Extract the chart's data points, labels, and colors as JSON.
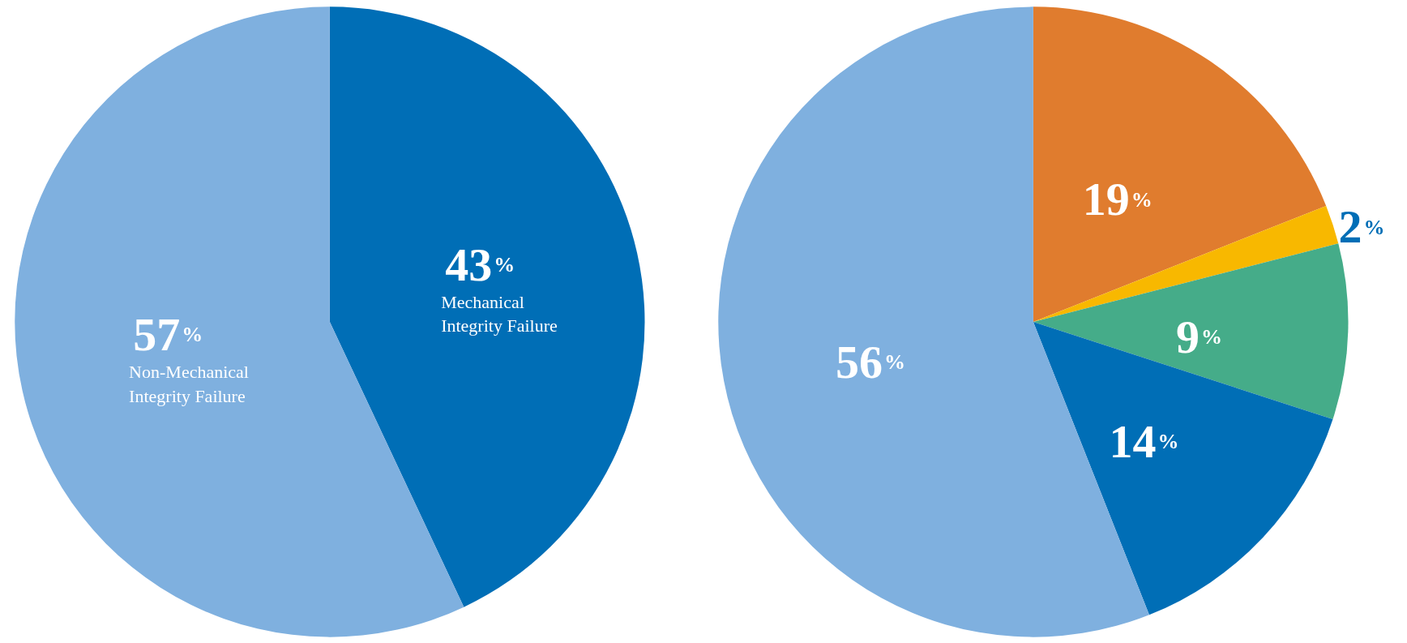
{
  "chart_data": [
    {
      "type": "pie",
      "categories": [
        "Mechanical Integrity Failure",
        "Non-Mechanical Integrity Failure"
      ],
      "values": [
        43,
        57
      ],
      "colors": [
        "#006eb6",
        "#7fb0df"
      ],
      "value_labels": [
        "43%",
        "57%"
      ]
    },
    {
      "type": "pie",
      "categories": [
        null,
        null,
        null,
        null,
        null
      ],
      "values": [
        19,
        2,
        9,
        14,
        56
      ],
      "colors": [
        "#e07c2e",
        "#f8b800",
        "#45ac89",
        "#006eb6",
        "#7fb0df"
      ],
      "value_labels": [
        "19%",
        "2%",
        "9%",
        "14%",
        "56%"
      ]
    }
  ]
}
